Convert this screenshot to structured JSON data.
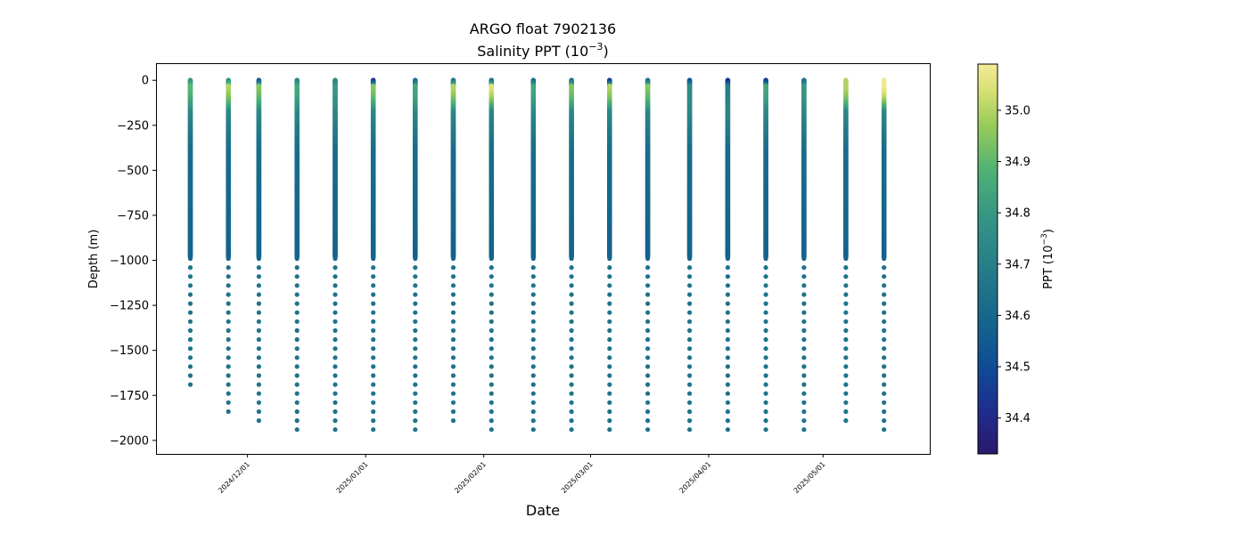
{
  "chart_data": {
    "type": "scatter",
    "title_line1": "ARGO float 7902136",
    "title_line2_base": "Salinity PPT (10",
    "title_line2_sup": "−3",
    "title_line2_end": ")",
    "xlabel": "Date",
    "ylabel": "Depth (m)",
    "colorbar_label_base": "PPT (10",
    "colorbar_label_sup": "−3",
    "colorbar_label_end": ")",
    "colormap": "haline",
    "color_range": [
      34.33,
      35.09
    ],
    "ylim": [
      -2075,
      95
    ],
    "xlim": [
      "2024-11-07",
      "2025-05-29"
    ],
    "grid": false,
    "yticks": [
      0,
      -250,
      -500,
      -750,
      -1000,
      -1250,
      -1500,
      -1750,
      -2000
    ],
    "ytick_labels": [
      "0",
      "−250",
      "−500",
      "−750",
      "−1000",
      "−1250",
      "−1500",
      "−1750",
      "−2000"
    ],
    "xticks": [
      "2024-12-01",
      "2025-01-01",
      "2025-02-01",
      "2025-03-01",
      "2025-04-01",
      "2025-05-01"
    ],
    "xtick_labels": [
      "2024/12/01",
      "2025/01/01",
      "2025/02/01",
      "2025/03/01",
      "2025/04/01",
      "2025/05/01"
    ],
    "colorbar_ticks": [
      34.4,
      34.5,
      34.6,
      34.7,
      34.8,
      34.9,
      35.0
    ],
    "colorbar_tick_labels": [
      "34.4",
      "34.5",
      "34.6",
      "34.7",
      "34.8",
      "34.9",
      "35.0"
    ],
    "profiles": [
      {
        "date": "2024-11-16",
        "max_depth": -1730,
        "surface_salinity": 34.78,
        "top_max_salinity": 34.9
      },
      {
        "date": "2024-11-26",
        "max_depth": -1880,
        "surface_salinity": 34.75,
        "top_max_salinity": 35.0
      },
      {
        "date": "2024-12-04",
        "max_depth": -1930,
        "surface_salinity": 34.52,
        "top_max_salinity": 34.95
      },
      {
        "date": "2024-12-14",
        "max_depth": -1975,
        "surface_salinity": 34.72,
        "top_max_salinity": 34.85
      },
      {
        "date": "2024-12-24",
        "max_depth": -1975,
        "surface_salinity": 34.72,
        "top_max_salinity": 34.8
      },
      {
        "date": "2025-01-03",
        "max_depth": -1975,
        "surface_salinity": 34.38,
        "top_max_salinity": 34.95
      },
      {
        "date": "2025-01-14",
        "max_depth": -1975,
        "surface_salinity": 34.6,
        "top_max_salinity": 34.85
      },
      {
        "date": "2025-01-24",
        "max_depth": -1930,
        "surface_salinity": 34.62,
        "top_max_salinity": 35.0
      },
      {
        "date": "2025-02-03",
        "max_depth": -1975,
        "surface_salinity": 34.6,
        "top_max_salinity": 35.05
      },
      {
        "date": "2025-02-14",
        "max_depth": -1975,
        "surface_salinity": 34.6,
        "top_max_salinity": 34.85
      },
      {
        "date": "2025-02-24",
        "max_depth": -1975,
        "surface_salinity": 34.62,
        "top_max_salinity": 34.95
      },
      {
        "date": "2025-03-06",
        "max_depth": -1975,
        "surface_salinity": 34.4,
        "top_max_salinity": 35.0
      },
      {
        "date": "2025-03-16",
        "max_depth": -1980,
        "surface_salinity": 34.62,
        "top_max_salinity": 34.95
      },
      {
        "date": "2025-03-27",
        "max_depth": -1975,
        "surface_salinity": 34.5,
        "top_max_salinity": 34.75
      },
      {
        "date": "2025-04-06",
        "max_depth": -1975,
        "surface_salinity": 34.4,
        "top_max_salinity": 34.7
      },
      {
        "date": "2025-04-16",
        "max_depth": -1975,
        "surface_salinity": 34.4,
        "top_max_salinity": 34.85
      },
      {
        "date": "2025-04-26",
        "max_depth": -1975,
        "surface_salinity": 34.62,
        "top_max_salinity": 34.8
      },
      {
        "date": "2025-05-07",
        "max_depth": -1930,
        "surface_salinity": 35.0,
        "top_max_salinity": 35.0
      },
      {
        "date": "2025-05-17",
        "max_depth": -1975,
        "surface_salinity": 35.08,
        "top_max_salinity": 35.08
      }
    ],
    "deep_salinity": 34.65
  }
}
